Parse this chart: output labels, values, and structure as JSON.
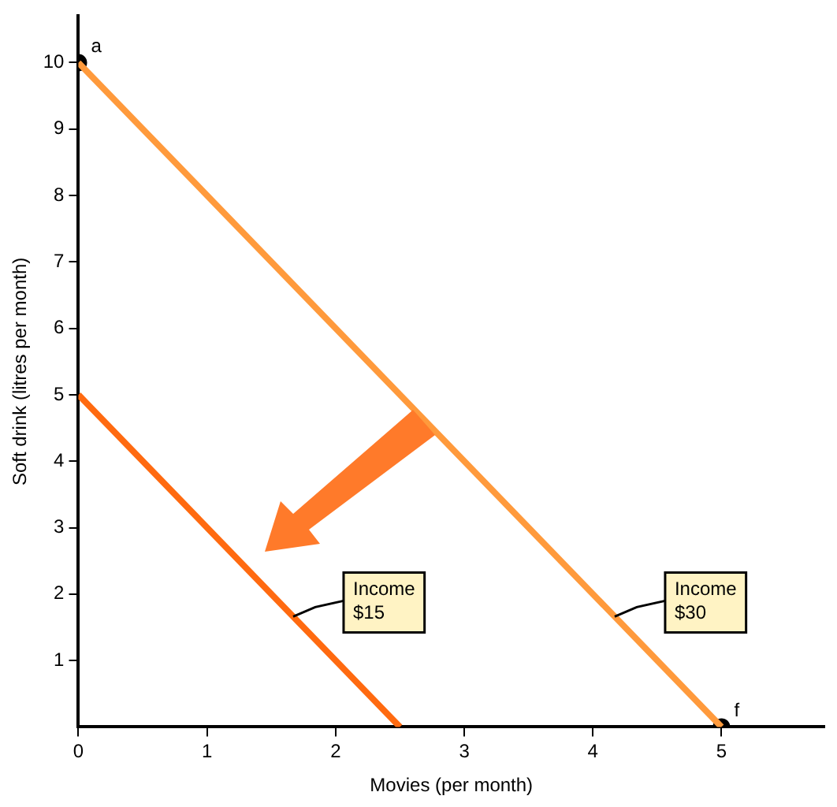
{
  "chart_data": {
    "type": "line",
    "xlabel": "Movies (per month)",
    "ylabel": "Soft drink (litres per month)",
    "xlim": [
      0,
      5.8
    ],
    "ylim": [
      0,
      10.7
    ],
    "xticks": [
      0,
      1,
      2,
      3,
      4,
      5
    ],
    "yticks": [
      1,
      2,
      3,
      4,
      5,
      6,
      7,
      8,
      9,
      10
    ],
    "grid": false,
    "legend": false,
    "marker": "none",
    "line_style": "solid",
    "series": [
      {
        "name": "Income $15",
        "color": "#ff6a10",
        "x": [
          0,
          2.5
        ],
        "values": [
          5,
          0
        ]
      },
      {
        "name": "Income $30",
        "color": "#ff9a3c",
        "x": [
          0,
          5
        ],
        "values": [
          10,
          0
        ]
      },
      {
        "type": "scatter",
        "marker": "circle",
        "color": "#000000",
        "x": [
          0,
          5
        ],
        "values": [
          10,
          0
        ]
      }
    ],
    "annotations": [
      {
        "text": "a",
        "x": 0,
        "y": 10
      },
      {
        "text": "f",
        "x": 5,
        "y": 0
      }
    ]
  }
}
